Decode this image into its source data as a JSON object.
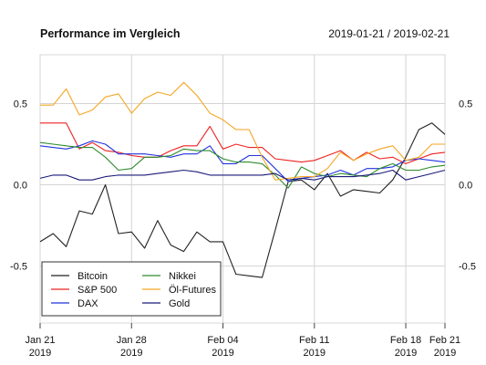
{
  "header": {
    "title": "Performance im Vergleich",
    "date_range": "2019-01-21 / 2019-02-21"
  },
  "chart_data": {
    "type": "line",
    "title": "Performance im Vergleich",
    "subtitle": "2019-01-21 / 2019-02-21",
    "xlabel": "",
    "ylabel": "",
    "xlim": [
      "2019-01-21",
      "2019-02-21"
    ],
    "ylim": [
      -0.85,
      0.8
    ],
    "yticks": [
      0.5,
      0.0,
      -0.5
    ],
    "ytick_labels": [
      "0.5",
      "0.0",
      "-0.5"
    ],
    "xticks": [
      {
        "date": "2019-01-21",
        "line1": "Jan 21",
        "line2": "2019"
      },
      {
        "date": "2019-01-28",
        "line1": "Jan 28",
        "line2": "2019"
      },
      {
        "date": "2019-02-04",
        "line1": "Feb 04",
        "line2": "2019"
      },
      {
        "date": "2019-02-11",
        "line1": "Feb 11",
        "line2": "2019"
      },
      {
        "date": "2019-02-18",
        "line1": "Feb 18",
        "line2": "2019"
      },
      {
        "date": "2019-02-21",
        "line1": "Feb 21",
        "line2": "2019"
      }
    ],
    "grid": true,
    "legend_position": "bottom-left",
    "series": [
      {
        "name": "Bitcoin",
        "color": "#222222",
        "points": [
          [
            "2019-01-21",
            -0.35
          ],
          [
            "2019-01-22",
            -0.3
          ],
          [
            "2019-01-23",
            -0.38
          ],
          [
            "2019-01-24",
            -0.16
          ],
          [
            "2019-01-25",
            -0.18
          ],
          [
            "2019-01-26",
            0.0
          ],
          [
            "2019-01-27",
            -0.3
          ],
          [
            "2019-01-28",
            -0.29
          ],
          [
            "2019-01-29",
            -0.39
          ],
          [
            "2019-01-30",
            -0.22
          ],
          [
            "2019-01-31",
            -0.37
          ],
          [
            "2019-02-01",
            -0.41
          ],
          [
            "2019-02-02",
            -0.29
          ],
          [
            "2019-02-03",
            -0.35
          ],
          [
            "2019-02-04",
            -0.35
          ],
          [
            "2019-02-05",
            -0.55
          ],
          [
            "2019-02-06",
            -0.56
          ],
          [
            "2019-02-07",
            -0.57
          ],
          [
            "2019-02-08",
            -0.28
          ],
          [
            "2019-02-09",
            0.02
          ],
          [
            "2019-02-10",
            0.03
          ],
          [
            "2019-02-11",
            -0.03
          ],
          [
            "2019-02-12",
            0.07
          ],
          [
            "2019-02-13",
            -0.07
          ],
          [
            "2019-02-14",
            -0.03
          ],
          [
            "2019-02-15",
            -0.04
          ],
          [
            "2019-02-16",
            -0.05
          ],
          [
            "2019-02-17",
            0.03
          ],
          [
            "2019-02-18",
            0.17
          ],
          [
            "2019-02-19",
            0.34
          ],
          [
            "2019-02-20",
            0.38
          ],
          [
            "2019-02-21",
            0.31
          ]
        ]
      },
      {
        "name": "S&P 500",
        "color": "#ee2222",
        "points": [
          [
            "2019-01-21",
            0.38
          ],
          [
            "2019-01-22",
            0.38
          ],
          [
            "2019-01-23",
            0.38
          ],
          [
            "2019-01-24",
            0.22
          ],
          [
            "2019-01-25",
            0.26
          ],
          [
            "2019-01-26",
            0.21
          ],
          [
            "2019-01-27",
            0.2
          ],
          [
            "2019-01-28",
            0.18
          ],
          [
            "2019-01-29",
            0.17
          ],
          [
            "2019-01-30",
            0.17
          ],
          [
            "2019-01-31",
            0.21
          ],
          [
            "2019-02-01",
            0.24
          ],
          [
            "2019-02-02",
            0.24
          ],
          [
            "2019-02-03",
            0.36
          ],
          [
            "2019-02-04",
            0.22
          ],
          [
            "2019-02-05",
            0.25
          ],
          [
            "2019-02-06",
            0.23
          ],
          [
            "2019-02-07",
            0.23
          ],
          [
            "2019-02-08",
            0.16
          ],
          [
            "2019-02-09",
            0.15
          ],
          [
            "2019-02-10",
            0.14
          ],
          [
            "2019-02-11",
            0.15
          ],
          [
            "2019-02-12",
            0.18
          ],
          [
            "2019-02-13",
            0.21
          ],
          [
            "2019-02-14",
            0.15
          ],
          [
            "2019-02-15",
            0.2
          ],
          [
            "2019-02-16",
            0.16
          ],
          [
            "2019-02-17",
            0.17
          ],
          [
            "2019-02-18",
            0.13
          ],
          [
            "2019-02-19",
            0.16
          ],
          [
            "2019-02-20",
            0.19
          ],
          [
            "2019-02-21",
            0.2
          ]
        ]
      },
      {
        "name": "DAX",
        "color": "#2233dd",
        "points": [
          [
            "2019-01-21",
            0.24
          ],
          [
            "2019-01-22",
            0.23
          ],
          [
            "2019-01-23",
            0.22
          ],
          [
            "2019-01-24",
            0.24
          ],
          [
            "2019-01-25",
            0.27
          ],
          [
            "2019-01-26",
            0.25
          ],
          [
            "2019-01-27",
            0.19
          ],
          [
            "2019-01-28",
            0.19
          ],
          [
            "2019-01-29",
            0.19
          ],
          [
            "2019-01-30",
            0.18
          ],
          [
            "2019-01-31",
            0.17
          ],
          [
            "2019-02-01",
            0.19
          ],
          [
            "2019-02-02",
            0.19
          ],
          [
            "2019-02-03",
            0.24
          ],
          [
            "2019-02-04",
            0.13
          ],
          [
            "2019-02-05",
            0.13
          ],
          [
            "2019-02-06",
            0.18
          ],
          [
            "2019-02-07",
            0.18
          ],
          [
            "2019-02-08",
            0.1
          ],
          [
            "2019-02-09",
            0.02
          ],
          [
            "2019-02-10",
            0.04
          ],
          [
            "2019-02-11",
            0.05
          ],
          [
            "2019-02-12",
            0.06
          ],
          [
            "2019-02-13",
            0.09
          ],
          [
            "2019-02-14",
            0.06
          ],
          [
            "2019-02-15",
            0.1
          ],
          [
            "2019-02-16",
            0.1
          ],
          [
            "2019-02-17",
            0.11
          ],
          [
            "2019-02-18",
            0.15
          ],
          [
            "2019-02-19",
            0.16
          ],
          [
            "2019-02-20",
            0.15
          ],
          [
            "2019-02-21",
            0.14
          ]
        ]
      },
      {
        "name": "Nikkei",
        "color": "#2e8b2e",
        "points": [
          [
            "2019-01-21",
            0.26
          ],
          [
            "2019-01-22",
            0.25
          ],
          [
            "2019-01-23",
            0.24
          ],
          [
            "2019-01-24",
            0.23
          ],
          [
            "2019-01-25",
            0.23
          ],
          [
            "2019-01-26",
            0.17
          ],
          [
            "2019-01-27",
            0.09
          ],
          [
            "2019-01-28",
            0.1
          ],
          [
            "2019-01-29",
            0.17
          ],
          [
            "2019-01-30",
            0.17
          ],
          [
            "2019-01-31",
            0.18
          ],
          [
            "2019-02-01",
            0.22
          ],
          [
            "2019-02-02",
            0.21
          ],
          [
            "2019-02-03",
            0.21
          ],
          [
            "2019-02-04",
            0.16
          ],
          [
            "2019-02-05",
            0.14
          ],
          [
            "2019-02-06",
            0.14
          ],
          [
            "2019-02-07",
            0.13
          ],
          [
            "2019-02-08",
            0.06
          ],
          [
            "2019-02-09",
            -0.02
          ],
          [
            "2019-02-10",
            0.11
          ],
          [
            "2019-02-11",
            0.07
          ],
          [
            "2019-02-12",
            0.05
          ],
          [
            "2019-02-13",
            0.07
          ],
          [
            "2019-02-14",
            0.06
          ],
          [
            "2019-02-15",
            0.05
          ],
          [
            "2019-02-16",
            0.1
          ],
          [
            "2019-02-17",
            0.13
          ],
          [
            "2019-02-18",
            0.09
          ],
          [
            "2019-02-19",
            0.09
          ],
          [
            "2019-02-20",
            0.11
          ],
          [
            "2019-02-21",
            0.12
          ]
        ]
      },
      {
        "name": "Öl-Futures",
        "color": "#f5a623",
        "points": [
          [
            "2019-01-21",
            0.49
          ],
          [
            "2019-01-22",
            0.49
          ],
          [
            "2019-01-23",
            0.59
          ],
          [
            "2019-01-24",
            0.43
          ],
          [
            "2019-01-25",
            0.46
          ],
          [
            "2019-01-26",
            0.54
          ],
          [
            "2019-01-27",
            0.56
          ],
          [
            "2019-01-28",
            0.44
          ],
          [
            "2019-01-29",
            0.53
          ],
          [
            "2019-01-30",
            0.57
          ],
          [
            "2019-01-31",
            0.55
          ],
          [
            "2019-02-01",
            0.63
          ],
          [
            "2019-02-02",
            0.55
          ],
          [
            "2019-02-03",
            0.44
          ],
          [
            "2019-02-04",
            0.4
          ],
          [
            "2019-02-05",
            0.34
          ],
          [
            "2019-02-06",
            0.34
          ],
          [
            "2019-02-07",
            0.17
          ],
          [
            "2019-02-08",
            0.03
          ],
          [
            "2019-02-09",
            0.04
          ],
          [
            "2019-02-10",
            0.05
          ],
          [
            "2019-02-11",
            0.05
          ],
          [
            "2019-02-12",
            0.1
          ],
          [
            "2019-02-13",
            0.2
          ],
          [
            "2019-02-14",
            0.15
          ],
          [
            "2019-02-15",
            0.19
          ],
          [
            "2019-02-16",
            0.22
          ],
          [
            "2019-02-17",
            0.24
          ],
          [
            "2019-02-18",
            0.15
          ],
          [
            "2019-02-19",
            0.17
          ],
          [
            "2019-02-20",
            0.25
          ],
          [
            "2019-02-21",
            0.25
          ]
        ]
      },
      {
        "name": "Gold",
        "color": "#1a1a7a",
        "points": [
          [
            "2019-01-21",
            0.04
          ],
          [
            "2019-01-22",
            0.06
          ],
          [
            "2019-01-23",
            0.06
          ],
          [
            "2019-01-24",
            0.03
          ],
          [
            "2019-01-25",
            0.03
          ],
          [
            "2019-01-26",
            0.05
          ],
          [
            "2019-01-27",
            0.06
          ],
          [
            "2019-01-28",
            0.06
          ],
          [
            "2019-01-29",
            0.06
          ],
          [
            "2019-01-30",
            0.07
          ],
          [
            "2019-01-31",
            0.08
          ],
          [
            "2019-02-01",
            0.09
          ],
          [
            "2019-02-02",
            0.08
          ],
          [
            "2019-02-03",
            0.06
          ],
          [
            "2019-02-04",
            0.06
          ],
          [
            "2019-02-05",
            0.06
          ],
          [
            "2019-02-06",
            0.06
          ],
          [
            "2019-02-07",
            0.06
          ],
          [
            "2019-02-08",
            0.07
          ],
          [
            "2019-02-09",
            0.03
          ],
          [
            "2019-02-10",
            0.04
          ],
          [
            "2019-02-11",
            0.03
          ],
          [
            "2019-02-12",
            0.05
          ],
          [
            "2019-02-13",
            0.05
          ],
          [
            "2019-02-14",
            0.05
          ],
          [
            "2019-02-15",
            0.06
          ],
          [
            "2019-02-16",
            0.07
          ],
          [
            "2019-02-17",
            0.09
          ],
          [
            "2019-02-18",
            0.03
          ],
          [
            "2019-02-19",
            0.05
          ],
          [
            "2019-02-20",
            0.07
          ],
          [
            "2019-02-21",
            0.09
          ]
        ]
      }
    ]
  }
}
